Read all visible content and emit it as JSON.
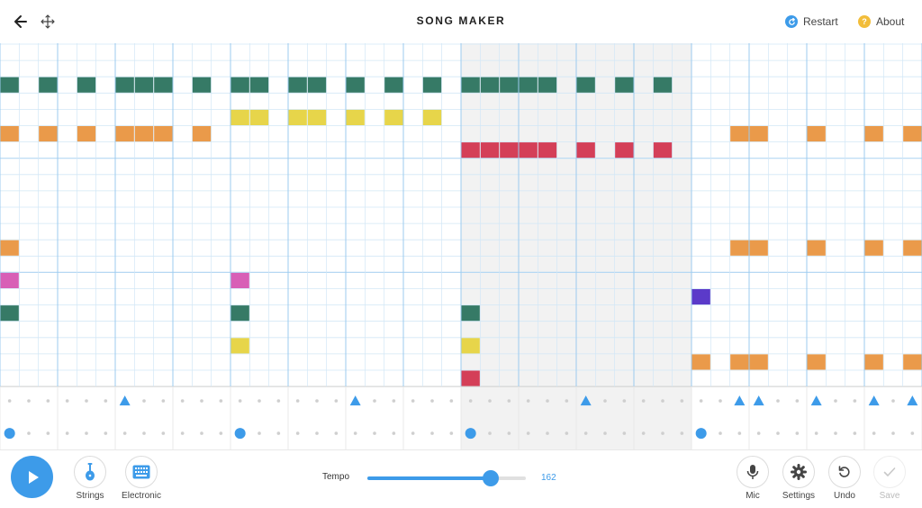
{
  "header": {
    "title": "SONG MAKER",
    "restart_label": "Restart",
    "about_label": "About",
    "icons": [
      "back-arrow-icon",
      "move-icon",
      "restart-icon",
      "about-icon"
    ],
    "colors": {
      "restart": "#3d9be9",
      "about": "#f2bd3a"
    }
  },
  "grid": {
    "columns": 48,
    "pitch_rows": 21,
    "shaded_bars": [
      2,
      4
    ],
    "colors": {
      "shade": "#f2f2f2",
      "line": "#d2e7f6",
      "beat": "#9ccbef",
      "row_band": "#b5d8f3",
      "dot": "#cfcfcf",
      "rhythm": "#3d9be9"
    },
    "note_colors": {
      "teal": "#367a66",
      "yellow": "#e7d54a",
      "orange": "#ea9a4a",
      "red": "#d43f58",
      "pink": "#d85fb6",
      "purple": "#5b3ac9"
    },
    "notes": [
      {
        "row": 2,
        "col": 0,
        "color": "teal"
      },
      {
        "row": 2,
        "col": 2,
        "color": "teal"
      },
      {
        "row": 2,
        "col": 4,
        "color": "teal"
      },
      {
        "row": 2,
        "col": 6,
        "color": "teal"
      },
      {
        "row": 2,
        "col": 7,
        "color": "teal"
      },
      {
        "row": 2,
        "col": 8,
        "color": "teal"
      },
      {
        "row": 2,
        "col": 10,
        "color": "teal"
      },
      {
        "row": 2,
        "col": 12,
        "color": "teal"
      },
      {
        "row": 2,
        "col": 13,
        "color": "teal"
      },
      {
        "row": 2,
        "col": 15,
        "color": "teal"
      },
      {
        "row": 2,
        "col": 16,
        "color": "teal"
      },
      {
        "row": 2,
        "col": 18,
        "color": "teal"
      },
      {
        "row": 2,
        "col": 20,
        "color": "teal"
      },
      {
        "row": 2,
        "col": 22,
        "color": "teal"
      },
      {
        "row": 2,
        "col": 24,
        "color": "teal"
      },
      {
        "row": 2,
        "col": 25,
        "color": "teal"
      },
      {
        "row": 2,
        "col": 26,
        "color": "teal"
      },
      {
        "row": 2,
        "col": 27,
        "color": "teal"
      },
      {
        "row": 2,
        "col": 28,
        "color": "teal"
      },
      {
        "row": 2,
        "col": 30,
        "color": "teal"
      },
      {
        "row": 2,
        "col": 32,
        "color": "teal"
      },
      {
        "row": 2,
        "col": 34,
        "color": "teal"
      },
      {
        "row": 4,
        "col": 12,
        "color": "yellow"
      },
      {
        "row": 4,
        "col": 13,
        "color": "yellow"
      },
      {
        "row": 4,
        "col": 15,
        "color": "yellow"
      },
      {
        "row": 4,
        "col": 16,
        "color": "yellow"
      },
      {
        "row": 4,
        "col": 18,
        "color": "yellow"
      },
      {
        "row": 4,
        "col": 20,
        "color": "yellow"
      },
      {
        "row": 4,
        "col": 22,
        "color": "yellow"
      },
      {
        "row": 5,
        "col": 0,
        "color": "orange"
      },
      {
        "row": 5,
        "col": 2,
        "color": "orange"
      },
      {
        "row": 5,
        "col": 4,
        "color": "orange"
      },
      {
        "row": 5,
        "col": 6,
        "color": "orange"
      },
      {
        "row": 5,
        "col": 7,
        "color": "orange"
      },
      {
        "row": 5,
        "col": 8,
        "color": "orange"
      },
      {
        "row": 5,
        "col": 10,
        "color": "orange"
      },
      {
        "row": 5,
        "col": 38,
        "color": "orange"
      },
      {
        "row": 5,
        "col": 39,
        "color": "orange"
      },
      {
        "row": 5,
        "col": 42,
        "color": "orange"
      },
      {
        "row": 5,
        "col": 45,
        "color": "orange"
      },
      {
        "row": 5,
        "col": 47,
        "color": "orange"
      },
      {
        "row": 6,
        "col": 24,
        "color": "red"
      },
      {
        "row": 6,
        "col": 25,
        "color": "red"
      },
      {
        "row": 6,
        "col": 26,
        "color": "red"
      },
      {
        "row": 6,
        "col": 27,
        "color": "red"
      },
      {
        "row": 6,
        "col": 28,
        "color": "red"
      },
      {
        "row": 6,
        "col": 30,
        "color": "red"
      },
      {
        "row": 6,
        "col": 32,
        "color": "red"
      },
      {
        "row": 6,
        "col": 34,
        "color": "red"
      },
      {
        "row": 12,
        "col": 0,
        "color": "orange"
      },
      {
        "row": 12,
        "col": 38,
        "color": "orange"
      },
      {
        "row": 12,
        "col": 39,
        "color": "orange"
      },
      {
        "row": 12,
        "col": 42,
        "color": "orange"
      },
      {
        "row": 12,
        "col": 45,
        "color": "orange"
      },
      {
        "row": 12,
        "col": 47,
        "color": "orange"
      },
      {
        "row": 14,
        "col": 0,
        "color": "pink"
      },
      {
        "row": 14,
        "col": 12,
        "color": "pink"
      },
      {
        "row": 15,
        "col": 36,
        "color": "purple"
      },
      {
        "row": 16,
        "col": 0,
        "color": "teal"
      },
      {
        "row": 16,
        "col": 12,
        "color": "teal"
      },
      {
        "row": 16,
        "col": 24,
        "color": "teal"
      },
      {
        "row": 18,
        "col": 12,
        "color": "yellow"
      },
      {
        "row": 18,
        "col": 24,
        "color": "yellow"
      },
      {
        "row": 19,
        "col": 36,
        "color": "orange"
      },
      {
        "row": 19,
        "col": 38,
        "color": "orange"
      },
      {
        "row": 19,
        "col": 39,
        "color": "orange"
      },
      {
        "row": 19,
        "col": 42,
        "color": "orange"
      },
      {
        "row": 19,
        "col": 45,
        "color": "orange"
      },
      {
        "row": 19,
        "col": 47,
        "color": "orange"
      },
      {
        "row": 20,
        "col": 24,
        "color": "red"
      }
    ],
    "triangles": [
      6,
      18,
      30,
      38,
      39,
      42,
      45,
      47
    ],
    "circles": [
      0,
      12,
      24,
      36
    ]
  },
  "footer": {
    "play_icon": "play-icon",
    "tools": [
      {
        "name": "strings",
        "label": "Strings",
        "icon": "violin-icon"
      },
      {
        "name": "electronic",
        "label": "Electronic",
        "icon": "keyboard-icon"
      },
      {
        "name": "mic",
        "label": "Mic",
        "icon": "microphone-icon"
      },
      {
        "name": "settings",
        "label": "Settings",
        "icon": "gear-icon"
      },
      {
        "name": "undo",
        "label": "Undo",
        "icon": "undo-icon"
      },
      {
        "name": "save",
        "label": "Save",
        "icon": "checkmark-icon"
      }
    ],
    "tempo": {
      "label": "Tempo",
      "value": "162",
      "fraction": 0.78
    }
  }
}
